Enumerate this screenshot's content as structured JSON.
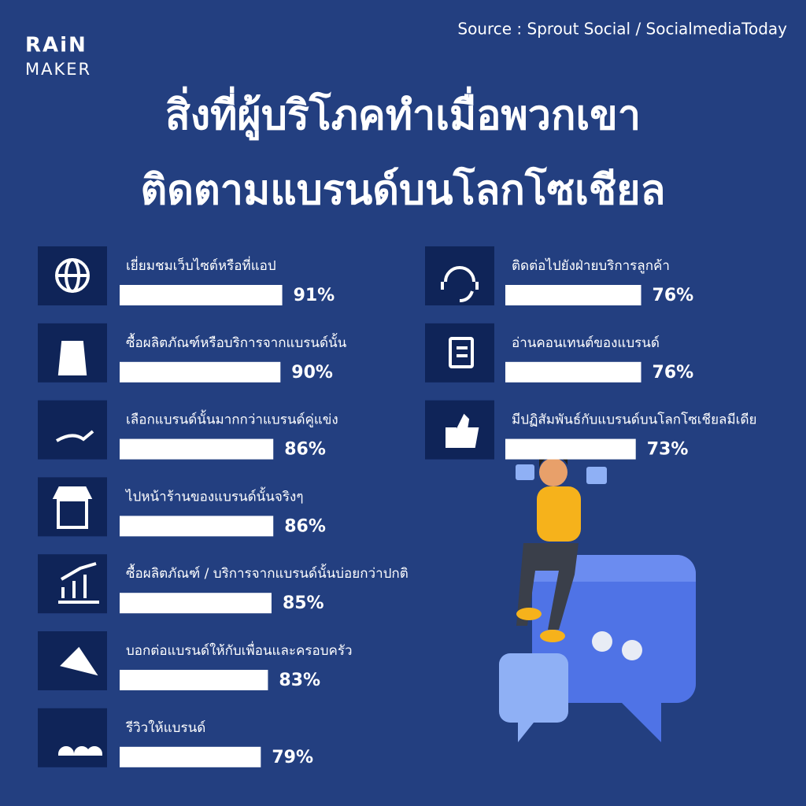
{
  "chart_data": {
    "type": "bar",
    "brand": [
      "RAiN",
      "MAKER"
    ],
    "source": "Source : Sprout Social / SocialmediaToday",
    "title": [
      "สิ่งที่ผู้บริโภคทำเมื่อพวกเขา",
      "ติดตามแบรนด์บนโลกโซเชียล"
    ],
    "categories": [
      "เยี่ยมชมเว็บไซต์หรือที่แอป",
      "ซื้อผลิตภัณฑ์หรือบริการจากแบรนด์นั้น",
      "เลือกแบรนด์นั้นมากกว่าแบรนด์คู่แข่ง",
      "ไปหน้าร้านของแบรนด์นั้นจริงๆ",
      "ซื้อผลิตภัณฑ์ / บริการจากแบรนด์นั้นบ่อยกว่าปกติ",
      "บอกต่อแบรนด์ให้กับเพื่อนและครอบครัว",
      "รีวิวให้แบรนด์",
      "ติดต่อไปยังฝ่ายบริการลูกค้า",
      "อ่านคอนเทนต์ของแบรนด์",
      "มีปฏิสัมพันธ์กับแบรนด์บนโลกโซเชียลมีเดีย"
    ],
    "values": [
      91,
      90,
      86,
      86,
      85,
      83,
      79,
      76,
      76,
      73
    ],
    "value_labels": [
      "91%",
      "90%",
      "86%",
      "86%",
      "85%",
      "83%",
      "79%",
      "76%",
      "76%",
      "73%"
    ],
    "color": "#ffffff"
  }
}
